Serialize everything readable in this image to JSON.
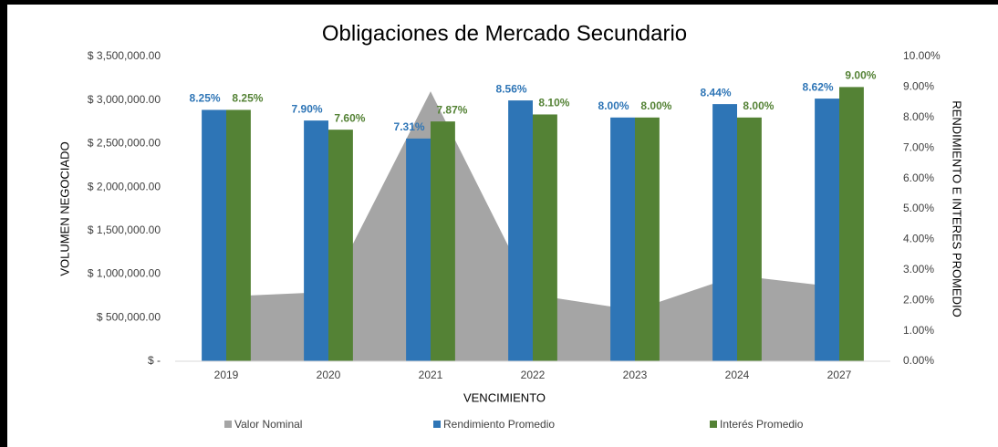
{
  "chart_data": {
    "type": "combo",
    "title": "Obligaciones de Mercado Secundario",
    "x_label": "VENCIMIENTO",
    "y_label": "VOLUMEN NEGOCIADO",
    "y2_label": "RENDIMIENTO E INTERES PROMEDIO",
    "categories": [
      "2019",
      "2020",
      "2021",
      "2022",
      "2023",
      "2024",
      "2027"
    ],
    "ylim": [
      0,
      3500000
    ],
    "yticks": [
      {
        "value": 0,
        "label": "$ -"
      },
      {
        "value": 500000,
        "label": "$ 500,000.00"
      },
      {
        "value": 1000000,
        "label": "$ 1,000,000.00"
      },
      {
        "value": 1500000,
        "label": "$ 1,500,000.00"
      },
      {
        "value": 2000000,
        "label": "$ 2,000,000.00"
      },
      {
        "value": 2500000,
        "label": "$ 2,500,000.00"
      },
      {
        "value": 3000000,
        "label": "$ 3,000,000.00"
      },
      {
        "value": 3500000,
        "label": "$ 3,500,000.00"
      }
    ],
    "y2lim": [
      0,
      10
    ],
    "y2ticks": [
      {
        "value": 0,
        "label": "0.00%"
      },
      {
        "value": 1,
        "label": "1.00%"
      },
      {
        "value": 2,
        "label": "2.00%"
      },
      {
        "value": 3,
        "label": "3.00%"
      },
      {
        "value": 4,
        "label": "4.00%"
      },
      {
        "value": 5,
        "label": "5.00%"
      },
      {
        "value": 6,
        "label": "6.00%"
      },
      {
        "value": 7,
        "label": "7.00%"
      },
      {
        "value": 8,
        "label": "8.00%"
      },
      {
        "value": 9,
        "label": "9.00%"
      },
      {
        "value": 10,
        "label": "10.00%"
      }
    ],
    "legend": "bottom",
    "series": [
      {
        "name": "Valor Nominal",
        "type": "area",
        "color": "#a5a5a5",
        "values": [
          744000,
          796000,
          3100000,
          765000,
          587000,
          985000,
          849000
        ]
      },
      {
        "name": "Rendimiento Promedio",
        "type": "bar",
        "axis": "y2",
        "color": "#2e75b6",
        "values": [
          8.25,
          7.9,
          7.31,
          8.56,
          8.0,
          8.44,
          8.62
        ],
        "value_labels": [
          "8.25%",
          "7.90%",
          "7.31%",
          "8.56%",
          "8.00%",
          "8.44%",
          "8.62%"
        ]
      },
      {
        "name": "Interés Promedio",
        "type": "bar",
        "axis": "y2",
        "color": "#548235",
        "values": [
          8.25,
          7.6,
          7.87,
          8.1,
          8.0,
          8.0,
          9.0
        ],
        "value_labels": [
          "8.25%",
          "7.60%",
          "7.87%",
          "8.10%",
          "8.00%",
          "8.00%",
          "9.00%"
        ]
      }
    ]
  }
}
